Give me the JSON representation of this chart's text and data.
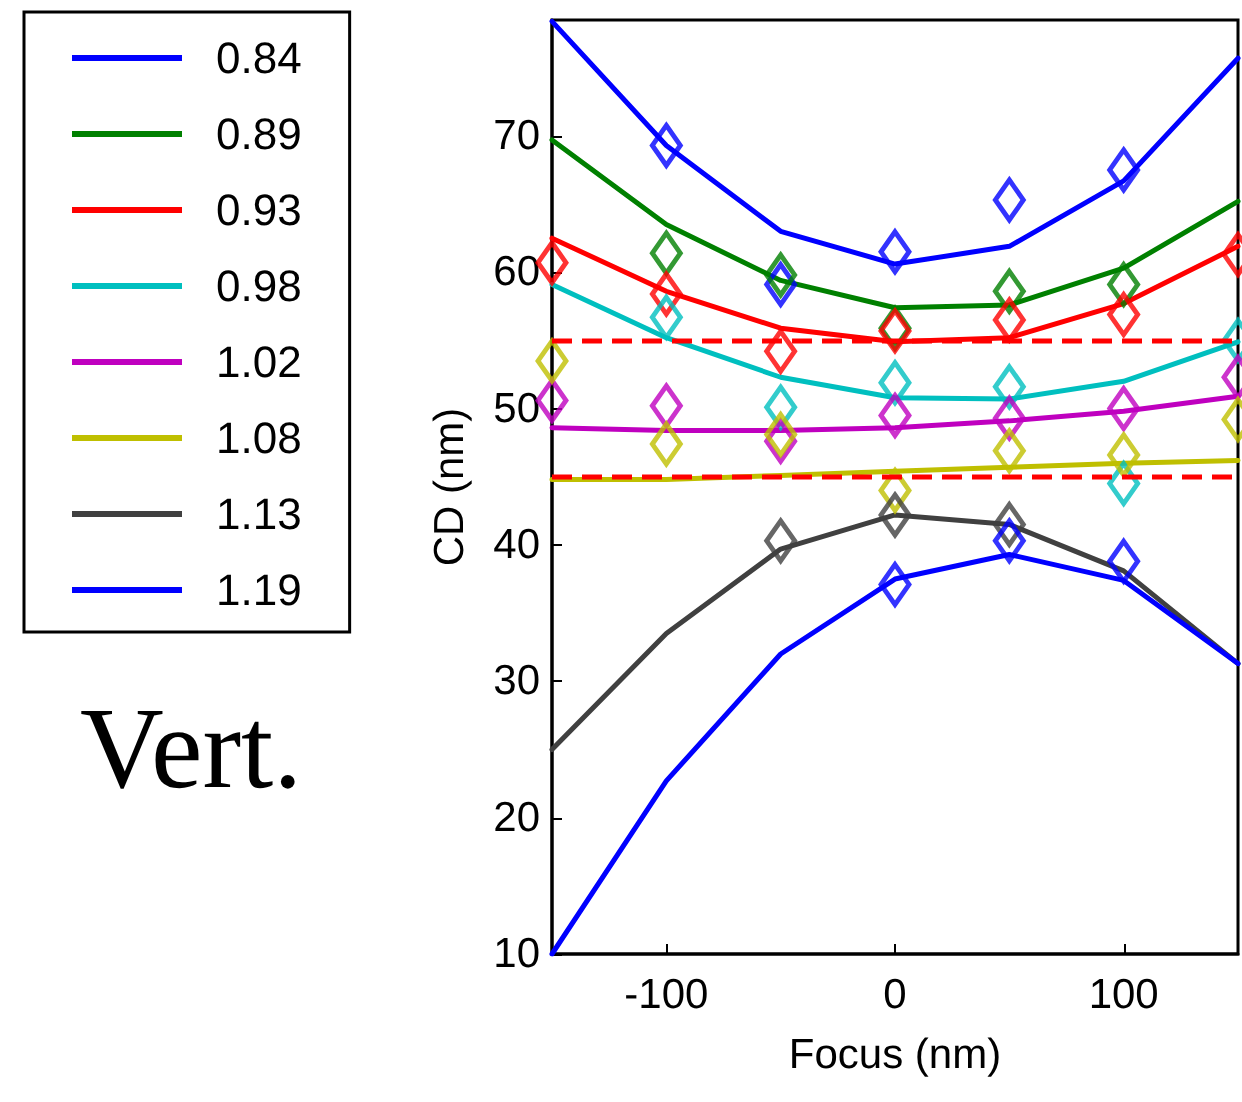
{
  "chart_data": {
    "type": "line",
    "xlabel": "Focus (nm)",
    "ylabel": "CD (nm)",
    "annotations": [
      "Vert."
    ],
    "x": [
      -150,
      -100,
      -50,
      0,
      50,
      100,
      150
    ],
    "xlim": [
      -150,
      150
    ],
    "xticks": [
      -100,
      0,
      100
    ],
    "ylim": [
      10,
      78.5
    ],
    "yticks": [
      10,
      20,
      30,
      40,
      50,
      60,
      70
    ],
    "grid": false,
    "legend": "top left",
    "ref_lines": [
      {
        "axis": "y",
        "value": 55,
        "color": "#ff0000",
        "line_style": "dashed"
      },
      {
        "axis": "y",
        "value": 45,
        "color": "#ff0000",
        "line_style": "dashed"
      }
    ],
    "series": [
      {
        "name": "0.84",
        "color": "#0000ff",
        "marker": "none",
        "values": [
          78.4,
          69.3,
          63.0,
          60.6,
          61.9,
          66.7,
          75.7
        ]
      },
      {
        "name": "0.89",
        "color": "#008000",
        "marker": "none",
        "values": [
          69.7,
          63.5,
          59.4,
          57.4,
          57.6,
          60.3,
          65.2
        ]
      },
      {
        "name": "0.93",
        "color": "#ff0000",
        "marker": "none",
        "values": [
          62.5,
          58.6,
          55.9,
          54.9,
          55.2,
          57.7,
          61.9
        ]
      },
      {
        "name": "0.98",
        "color": "#00bfbf",
        "marker": "none",
        "values": [
          59.1,
          55.2,
          52.3,
          50.8,
          50.7,
          52.0,
          54.9
        ]
      },
      {
        "name": "1.02",
        "color": "#bf00bf",
        "marker": "none",
        "values": [
          48.6,
          48.4,
          48.4,
          48.6,
          49.1,
          49.8,
          50.9
        ]
      },
      {
        "name": "1.08",
        "color": "#bfbf00",
        "marker": "none",
        "values": [
          44.8,
          44.8,
          45.1,
          45.4,
          45.7,
          46.0,
          46.2
        ]
      },
      {
        "name": "1.13",
        "color": "#404040",
        "marker": "none",
        "values": [
          25.0,
          33.5,
          39.7,
          42.2,
          41.5,
          38.1,
          31.3
        ]
      },
      {
        "name": "1.19",
        "color": "#0000ff",
        "marker": "none",
        "values": [
          10.0,
          22.7,
          32.0,
          37.5,
          39.3,
          37.4,
          31.3
        ]
      },
      {
        "type": "scatter",
        "color": "#0000ff",
        "marker": "diamond",
        "values": [
          null,
          69.3,
          59.1,
          61.5,
          65.3,
          67.5,
          null
        ]
      },
      {
        "type": "scatter",
        "color": "#008000",
        "marker": "diamond",
        "values": [
          null,
          61.4,
          59.8,
          55.9,
          58.6,
          59.1,
          null
        ]
      },
      {
        "type": "scatter",
        "color": "#ff0000",
        "marker": "diamond",
        "values": [
          60.7,
          58.4,
          54.2,
          55.7,
          56.5,
          56.9,
          61.3
        ]
      },
      {
        "type": "scatter",
        "color": "#00bfbf",
        "marker": "diamond",
        "values": [
          null,
          56.7,
          50.1,
          51.9,
          51.6,
          44.5,
          55.0
        ]
      },
      {
        "type": "scatter",
        "color": "#bf00bf",
        "marker": "diamond",
        "values": [
          50.6,
          50.2,
          47.6,
          49.5,
          49.3,
          50.0,
          52.3
        ]
      },
      {
        "type": "scatter",
        "color": "#bfbf00",
        "marker": "diamond",
        "values": [
          53.5,
          47.4,
          48.1,
          44.0,
          46.9,
          46.6,
          49.2
        ]
      },
      {
        "type": "scatter",
        "color": "#404040",
        "marker": "diamond",
        "values": [
          null,
          null,
          40.3,
          42.2,
          41.5,
          null,
          null
        ]
      },
      {
        "type": "scatter",
        "color": "#0000ff",
        "marker": "diamond",
        "values": [
          null,
          null,
          null,
          37.1,
          40.3,
          38.8,
          null
        ]
      }
    ]
  }
}
